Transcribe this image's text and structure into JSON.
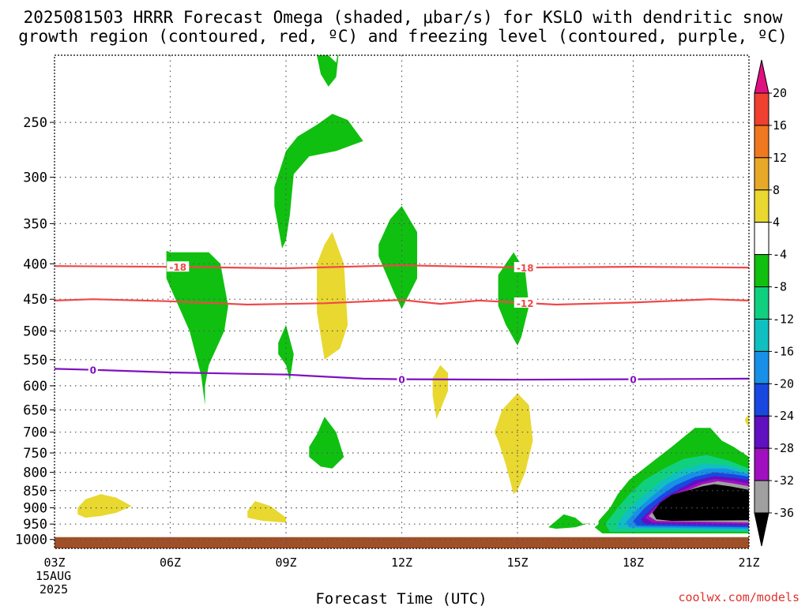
{
  "chart_data": {
    "type": "heatmap",
    "title_line1": "2025081503 HRRR Forecast Omega (shaded, μbar/s) for KSLO with dendritic snow",
    "title_line2": "growth region (contoured, red, ºC) and freezing level (contoured, purple, ºC)",
    "xlabel": "Forecast Time (UTC)",
    "credit": "coolwx.com/models",
    "x_range": [
      3,
      21
    ],
    "y_range_hpa": [
      200,
      1030
    ],
    "y_scale": "log-pressure (inverted)",
    "grid": true,
    "x_ticks": [
      {
        "x": 3,
        "label": "03Z"
      },
      {
        "x": 6,
        "label": "06Z"
      },
      {
        "x": 9,
        "label": "09Z"
      },
      {
        "x": 12,
        "label": "12Z"
      },
      {
        "x": 15,
        "label": "15Z"
      },
      {
        "x": 18,
        "label": "18Z"
      },
      {
        "x": 21,
        "label": "21Z"
      }
    ],
    "x_date_lines": [
      "15AUG",
      "2025"
    ],
    "y_ticks": [
      250,
      300,
      350,
      400,
      450,
      500,
      550,
      600,
      650,
      700,
      750,
      800,
      850,
      900,
      950,
      1000
    ],
    "colorbar": {
      "labels": [
        "20",
        "16",
        "12",
        "8",
        "4",
        "-4",
        "-8",
        "-12",
        "-16",
        "-20",
        "-24",
        "-28",
        "-32",
        "-36"
      ],
      "colors": [
        "#e01080",
        "#f04030",
        "#f07820",
        "#e8a828",
        "#e8d830",
        "#ffffff",
        "#10c010",
        "#10d080",
        "#10c0c0",
        "#1890e8",
        "#1848e0",
        "#6010c0",
        "#a010c0",
        "#a0a0a0",
        "#000000"
      ]
    },
    "terrain_color": "#a05028",
    "contours": [
      {
        "type": "temperature",
        "value": -18,
        "label": "-18",
        "color": "#f04848",
        "x": [
          3,
          6,
          9,
          12,
          15,
          18,
          21
        ],
        "p": [
          403,
          404,
          406,
          402,
          405,
          404,
          405
        ]
      },
      {
        "type": "temperature",
        "value": -12,
        "label": "-12",
        "color": "#f04848",
        "x": [
          3,
          4,
          6,
          8,
          10,
          12,
          13,
          14,
          16,
          18,
          20,
          21
        ],
        "p": [
          452,
          450,
          453,
          458,
          456,
          451,
          457,
          452,
          458,
          455,
          450,
          452
        ]
      },
      {
        "type": "freezing",
        "value": 0,
        "label": "0",
        "color": "#8010c0",
        "x": [
          3,
          4,
          6,
          9,
          11,
          12,
          15,
          18,
          21
        ],
        "p": [
          567,
          569,
          574,
          578,
          586,
          587,
          588,
          587,
          586
        ]
      }
    ],
    "contour_label_positions": [
      {
        "value": -18,
        "x": [
          6.2,
          15.2
        ]
      },
      {
        "value": -12,
        "x": [
          15.2
        ]
      },
      {
        "value": 0,
        "x": [
          4.0,
          12.0,
          18.0
        ]
      }
    ],
    "omega_regions": [
      {
        "category": "-4 to -8",
        "color": "#10c010",
        "x": [
          9.8,
          10.0,
          10.1,
          10.3,
          10.4,
          10.3,
          10.1,
          9.9
        ],
        "p": [
          200,
          196,
          200,
          205,
          190,
          215,
          222,
          213
        ]
      },
      {
        "category": "-4 to -8",
        "color": "#10c010",
        "x": [
          8.7,
          9.0,
          9.3,
          9.8,
          10.2,
          10.6,
          11.0,
          10.3,
          9.6,
          9.2,
          9.1,
          9.0,
          8.9,
          8.7
        ],
        "p": [
          310,
          275,
          262,
          252,
          243,
          248,
          266,
          275,
          280,
          297,
          340,
          370,
          380,
          330
        ]
      },
      {
        "category": "-4 to -8",
        "color": "#10c010",
        "x": [
          5.9,
          6.0,
          6.3,
          6.5,
          7.0,
          7.3,
          7.5,
          7.4,
          7.0,
          7.0,
          6.9,
          6.9,
          6.9,
          6.8,
          6.5,
          5.9,
          5.9
        ],
        "p": [
          383,
          385,
          385,
          385,
          385,
          400,
          460,
          500,
          560,
          560,
          600,
          620,
          640,
          580,
          500,
          420,
          410
        ]
      },
      {
        "category": "-4 to -8",
        "color": "#10c010",
        "x": [
          8.8,
          9.0,
          9.2,
          9.1,
          9.0,
          8.8
        ],
        "p": [
          520,
          490,
          540,
          590,
          560,
          540
        ]
      },
      {
        "category": "-4 to -8",
        "color": "#10c010",
        "x": [
          11.4,
          11.7,
          12.0,
          12.4,
          12.4,
          12.0,
          11.8,
          11.4
        ],
        "p": [
          375,
          345,
          330,
          360,
          420,
          465,
          440,
          390
        ]
      },
      {
        "category": "-4 to -8",
        "color": "#10c010",
        "x": [
          14.5,
          14.9,
          15.2,
          15.3,
          15.1,
          15.0,
          14.7,
          14.5,
          14.5
        ],
        "p": [
          415,
          385,
          410,
          460,
          510,
          525,
          490,
          460,
          420
        ]
      },
      {
        "category": "-4 to -8",
        "color": "#10c010",
        "x": [
          9.6,
          9.8,
          10.0,
          10.3,
          10.5,
          10.2,
          9.9,
          9.6
        ],
        "p": [
          735,
          705,
          665,
          700,
          760,
          790,
          785,
          760
        ]
      },
      {
        "category": "-4 to -8",
        "color": "#10c010",
        "x": [
          15.8,
          16.0,
          16.2,
          16.5,
          16.7,
          16.9,
          16.5,
          16.0,
          15.8
        ],
        "p": [
          960,
          940,
          920,
          930,
          950,
          945,
          960,
          965,
          960
        ]
      },
      {
        "category": "-4 to -8",
        "color": "#10c010",
        "x": [
          17.1,
          17.4,
          17.6,
          17.9,
          18.4,
          19.0,
          19.6,
          20.0,
          20.3,
          20.6,
          21.0,
          21.0,
          17.2,
          17.0,
          17.1
        ],
        "p": [
          940,
          900,
          860,
          820,
          780,
          735,
          690,
          690,
          720,
          735,
          760,
          980,
          980,
          960,
          950
        ]
      },
      {
        "category": "-8 to -12",
        "color": "#10d080",
        "x": [
          17.3,
          17.6,
          17.9,
          18.3,
          18.8,
          19.3,
          19.9,
          20.5,
          21.0,
          21.0,
          17.4,
          17.3
        ],
        "p": [
          945,
          900,
          860,
          820,
          790,
          765,
          755,
          770,
          790,
          975,
          975,
          955
        ]
      },
      {
        "category": "-12 to -16",
        "color": "#10c0c0",
        "x": [
          17.6,
          17.9,
          18.3,
          18.7,
          19.2,
          19.8,
          20.4,
          21.0,
          21.0,
          17.6
        ],
        "p": [
          945,
          900,
          860,
          825,
          795,
          778,
          780,
          800,
          970,
          965
        ]
      },
      {
        "category": "-16 to -20",
        "color": "#1890e8",
        "x": [
          17.8,
          18.1,
          18.5,
          18.9,
          19.4,
          19.9,
          20.4,
          21.0,
          21.0,
          17.9
        ],
        "p": [
          945,
          905,
          865,
          830,
          805,
          790,
          790,
          805,
          965,
          960
        ]
      },
      {
        "category": "-20 to -24",
        "color": "#1848e0",
        "x": [
          18.0,
          18.3,
          18.7,
          19.1,
          19.6,
          20.1,
          20.6,
          21.0,
          21.0,
          18.1
        ],
        "p": [
          940,
          900,
          865,
          835,
          812,
          800,
          805,
          812,
          960,
          955
        ]
      },
      {
        "category": "-24 to -28",
        "color": "#6010c0",
        "x": [
          18.2,
          18.5,
          18.8,
          19.2,
          19.6,
          20.1,
          20.6,
          21.0,
          21.0,
          18.3
        ],
        "p": [
          935,
          900,
          870,
          845,
          822,
          810,
          815,
          820,
          955,
          950
        ]
      },
      {
        "category": "-28 to -32",
        "color": "#a010c0",
        "x": [
          18.3,
          18.6,
          18.9,
          19.3,
          19.7,
          20.1,
          20.6,
          21.0,
          21.0,
          18.5
        ],
        "p": [
          930,
          895,
          868,
          848,
          828,
          818,
          822,
          830,
          950,
          945
        ]
      },
      {
        "category": "-32 to -36",
        "color": "#a0a0a0",
        "x": [
          18.4,
          18.7,
          19.0,
          19.4,
          19.8,
          20.2,
          20.6,
          21.0,
          21.0,
          18.6
        ],
        "p": [
          925,
          892,
          866,
          850,
          832,
          824,
          830,
          838,
          945,
          940
        ]
      },
      {
        "category": "< -36",
        "color": "#000000",
        "x": [
          18.5,
          18.7,
          19.0,
          19.4,
          19.8,
          20.1,
          20.5,
          21.0,
          21.0,
          19.0,
          18.6
        ],
        "p": [
          915,
          885,
          862,
          850,
          838,
          832,
          838,
          848,
          938,
          940,
          935
        ]
      },
      {
        "category": "4 to 8",
        "color": "#e8d830",
        "x": [
          9.8,
          10.0,
          10.2,
          10.5,
          10.6,
          10.4,
          10.0,
          9.8
        ],
        "p": [
          400,
          375,
          360,
          400,
          490,
          530,
          550,
          470
        ]
      },
      {
        "category": "4 to 8",
        "color": "#e8d830",
        "x": [
          12.8,
          13.0,
          13.2,
          13.2,
          13.0,
          12.9,
          12.8
        ],
        "p": [
          585,
          560,
          575,
          610,
          650,
          670,
          620
        ]
      },
      {
        "category": "4 to 8",
        "color": "#e8d830",
        "x": [
          14.4,
          14.6,
          15.0,
          15.3,
          15.4,
          15.2,
          15.0,
          14.9,
          14.7,
          14.5,
          14.4
        ],
        "p": [
          700,
          650,
          615,
          640,
          720,
          800,
          850,
          860,
          780,
          720,
          700
        ]
      },
      {
        "category": "4 to 8",
        "color": "#e8d830",
        "x": [
          3.6,
          3.8,
          4.2,
          4.6,
          5.0,
          4.6,
          4.2,
          3.8,
          3.6
        ],
        "p": [
          900,
          875,
          860,
          870,
          895,
          915,
          925,
          930,
          920
        ]
      },
      {
        "category": "4 to 8",
        "color": "#e8d830",
        "x": [
          8.0,
          8.2,
          8.6,
          9.0,
          9.0,
          8.4,
          8.0
        ],
        "p": [
          910,
          880,
          895,
          930,
          945,
          940,
          930
        ]
      },
      {
        "category": "4 to 8",
        "color": "#e8d830",
        "x": [
          20.9,
          21.0,
          21.0,
          20.9
        ],
        "p": [
          670,
          660,
          690,
          675
        ]
      }
    ]
  }
}
